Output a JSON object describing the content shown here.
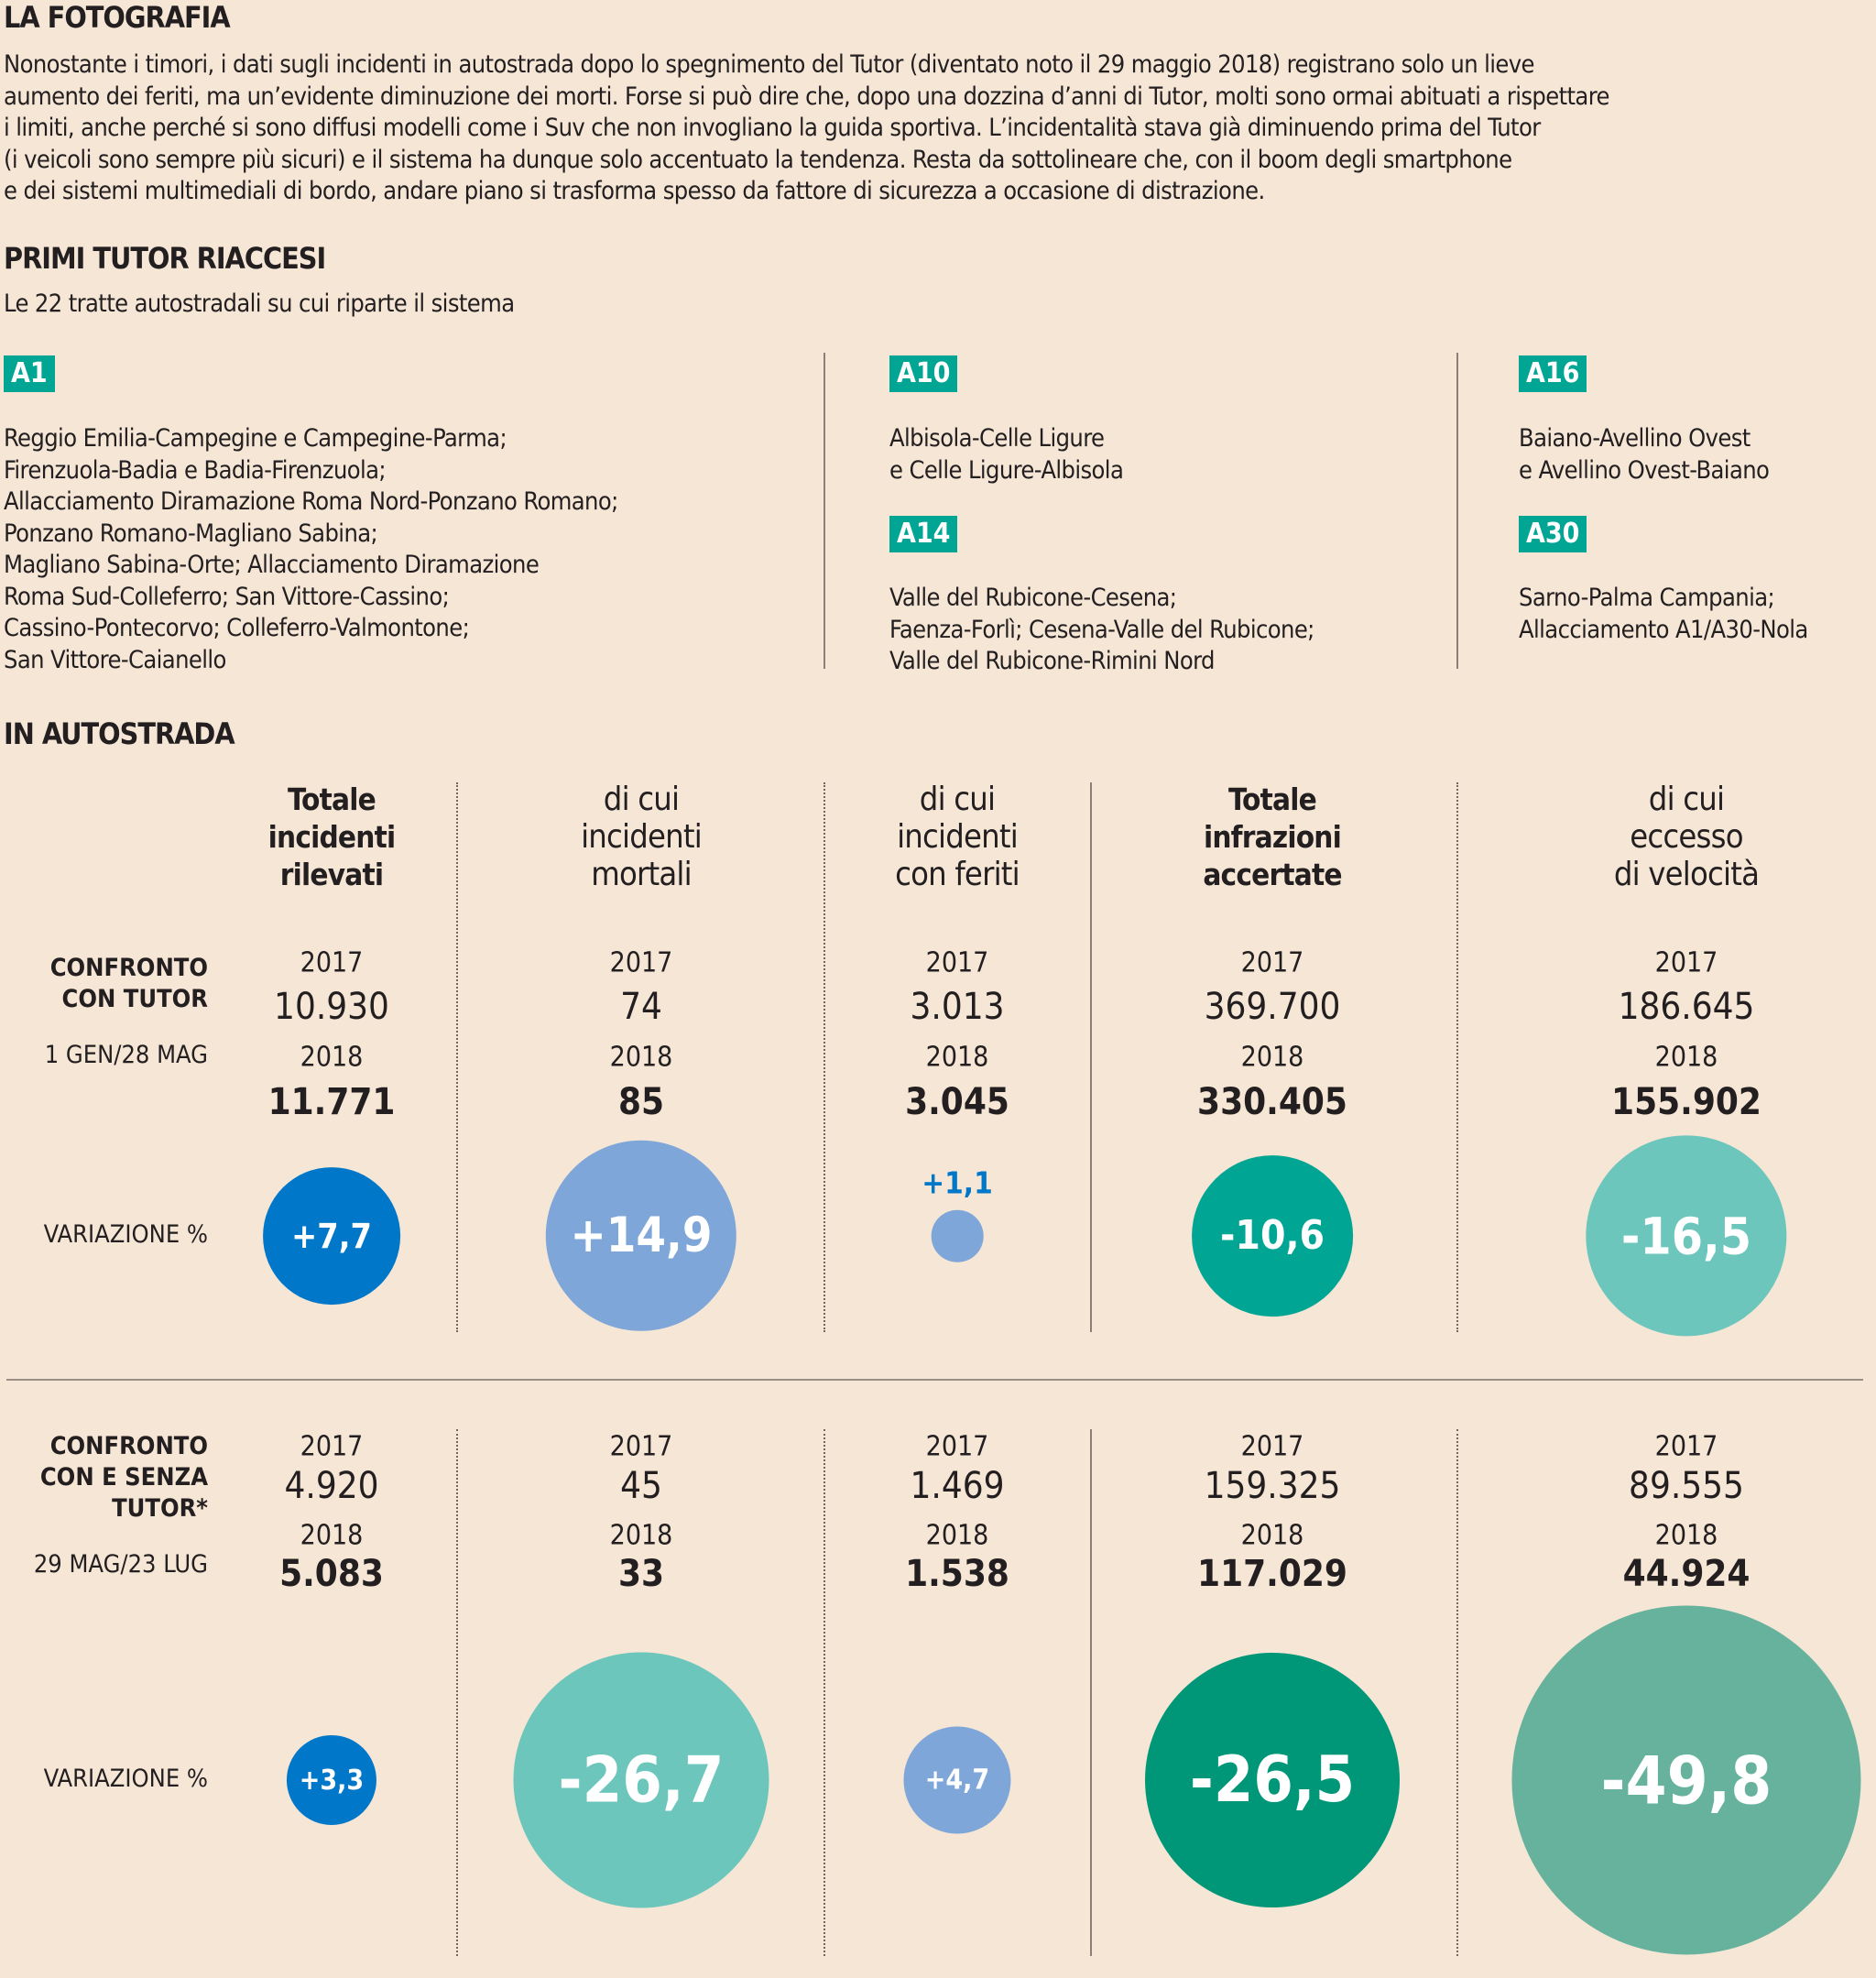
{
  "title": "LA FOTOGRAFIA",
  "paragraph": [
    "Nonostante i timori, i dati sugli incidenti in autostrada dopo lo spegnimento del Tutor (diventato noto il 29 maggio 2018) registrano solo un lieve",
    "aumento dei feriti, ma un’evidente diminuzione dei morti. Forse si può dire che, dopo una dozzina d’anni di Tutor, molti sono ormai abituati a rispettare",
    "i limiti, anche perché si sono diffusi modelli come i Suv che non invogliano la guida sportiva. L’incidentalità stava già diminuendo prima del Tutor",
    "(i veicoli sono sempre più sicuri) e il sistema ha dunque solo accentuato la tendenza. Resta da sottolineare che, con il boom degli smartphone",
    "e dei sistemi multimediali di bordo, andare piano si trasforma spesso da fattore di sicurezza a  occasione di distrazione."
  ],
  "tutor": {
    "title": "PRIMI TUTOR RIACCESI",
    "subtitle": "Le 22 tratte autostradali su cui riparte il sistema",
    "groups": [
      {
        "road": "A1",
        "lines": [
          "Reggio Emilia-Campegine e Campegine-Parma;",
          "Firenzuola-Badia e Badia-Firenzuola;",
          "Allacciamento Diramazione Roma Nord-Ponzano Romano;",
          "Ponzano Romano-Magliano Sabina;",
          "Magliano Sabina-Orte; Allacciamento Diramazione",
          "Roma Sud-Colleferro; San Vittore-Cassino;",
          "Cassino-Pontecorvo; Colleferro-Valmontone;",
          "San Vittore-Caianello"
        ]
      },
      {
        "road": "A10",
        "lines": [
          "Albisola-Celle Ligure",
          "e Celle Ligure-Albisola"
        ]
      },
      {
        "road": "A14",
        "lines": [
          "Valle del Rubicone-Cesena;",
          "Faenza-Forlì; Cesena-Valle del Rubicone;",
          "Valle del Rubicone-Rimini Nord"
        ]
      },
      {
        "road": "A16",
        "lines": [
          "Baiano-Avellino Ovest",
          "e Avellino Ovest-Baiano"
        ]
      },
      {
        "road": "A30",
        "lines": [
          "Sarno-Palma Campania;",
          "Allacciamento A1/A30-Nola"
        ]
      }
    ]
  },
  "section": "IN AUTOSTRADA",
  "chart_data": {
    "type": "bubble",
    "columns": [
      {
        "head": [
          "Totale",
          "incidenti",
          "rilevati"
        ],
        "bold": true
      },
      {
        "head": [
          "di cui",
          "incidenti",
          "mortali"
        ],
        "bold": false
      },
      {
        "head": [
          "di cui",
          "incidenti",
          "con feriti"
        ],
        "bold": false
      },
      {
        "head": [
          "Totale",
          "infrazioni",
          "accertate"
        ],
        "bold": true
      },
      {
        "head": [
          "di cui",
          "eccesso",
          "di velocità"
        ],
        "bold": false
      }
    ],
    "year_a": "2017",
    "year_b": "2018",
    "variation_label": "VARIAZIONE %",
    "rows": [
      {
        "label": [
          "CONFRONTO",
          "CON TUTOR"
        ],
        "period": "1 GEN/28 MAG",
        "v2017": [
          "10.930",
          "74",
          "3.013",
          "369.700",
          "186.645"
        ],
        "v2018": [
          "11.771",
          "85",
          "3.045",
          "330.405",
          "155.902"
        ],
        "variation": [
          "+7,7",
          "+14,9",
          "+1,1",
          "-10,6",
          "-16,5"
        ],
        "variation_values": [
          7.7,
          14.9,
          1.1,
          -10.6,
          -16.5
        ]
      },
      {
        "label": [
          "CONFRONTO",
          "CON E SENZA",
          "TUTOR*"
        ],
        "period": "29 MAG/23 LUG",
        "v2017": [
          "4.920",
          "45",
          "1.469",
          "159.325",
          "89.555"
        ],
        "v2018": [
          "5.083",
          "33",
          "1.538",
          "117.029",
          "44.924"
        ],
        "variation": [
          "+3,3",
          "-26,7",
          "+4,7",
          "-26,5",
          "-49,8"
        ],
        "variation_values": [
          3.3,
          -26.7,
          4.7,
          -26.5,
          -49.8
        ]
      }
    ],
    "colors": [
      [
        "#0077c8",
        "#7fa6d8",
        "#7fa6d8",
        "#00a693",
        "#6dc6bc"
      ],
      [
        "#0077c8",
        "#6dc6bc",
        "#7fa6d8",
        "#009778",
        "#66b29c"
      ]
    ]
  }
}
